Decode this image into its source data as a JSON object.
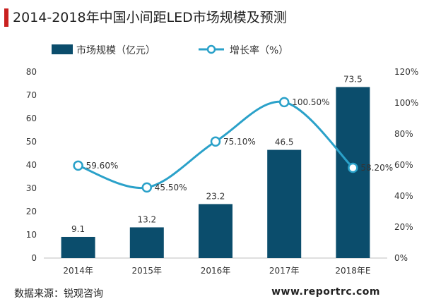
{
  "chart_data": {
    "type": "bar+line",
    "title": "2014-2018年中国小间距LED市场规模及预测",
    "categories": [
      "2014年",
      "2015年",
      "2016年",
      "2017年",
      "2018年E"
    ],
    "series": [
      {
        "name": "市场规模（亿元）",
        "type": "bar",
        "axis": "left",
        "values": [
          9.1,
          13.2,
          23.2,
          46.5,
          73.5
        ],
        "labels": [
          "9.1",
          "13.2",
          "23.2",
          "46.5",
          "73.5"
        ]
      },
      {
        "name": "增长率（%）",
        "type": "line",
        "axis": "right",
        "values": [
          59.6,
          45.5,
          75.1,
          100.5,
          58.2
        ],
        "labels": [
          "59.60%",
          "45.50%",
          "75.10%",
          "100.50%",
          "58.20%"
        ]
      }
    ],
    "left_axis": {
      "min": 0,
      "max": 80,
      "ticks": [
        "0",
        "10",
        "20",
        "30",
        "40",
        "50",
        "60",
        "70",
        "80"
      ]
    },
    "right_axis": {
      "min": 0,
      "max": 120,
      "ticks": [
        "0%",
        "20%",
        "40%",
        "60%",
        "80%",
        "100%",
        "120%"
      ]
    },
    "legend_placement": "top",
    "colors": {
      "bar": "#0b4d6c",
      "line": "#2aa1c9",
      "accent": "#c9201f"
    },
    "grid": false
  },
  "footer": {
    "source": "数据来源：锐观咨询",
    "website": "www.reportrc.com"
  }
}
